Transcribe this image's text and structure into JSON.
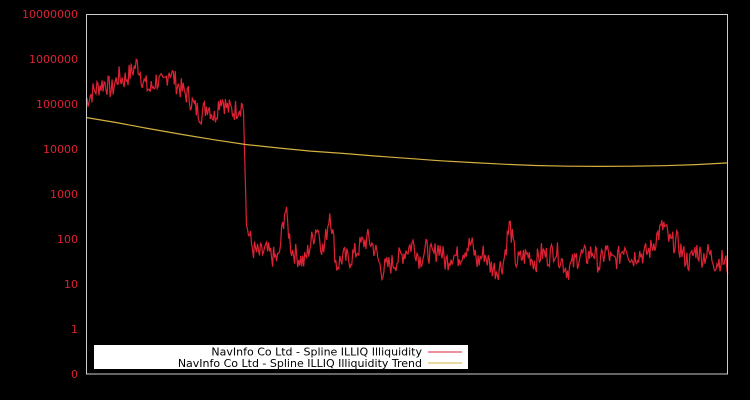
{
  "chart_data": {
    "type": "line",
    "title": "",
    "xlabel": "",
    "ylabel": "",
    "yscale": "log",
    "ylim": [
      0,
      10000000
    ],
    "y_tick_labels": [
      "10000000",
      "1000000",
      "100000",
      "10000",
      "1000",
      "100",
      "10",
      "1",
      "0"
    ],
    "grid": false,
    "legend_position": "lower-left",
    "colors": {
      "background": "#000000",
      "frame": "#cccccc",
      "tick_label": "#dd2233",
      "series_main": "#dd2233",
      "series_trend": "#d4b040",
      "legend_bg": "#ffffff"
    },
    "series": [
      {
        "name": "NavInfo Co Ltd - Spline ILLIQ Illiquidity",
        "color": "#dd2233",
        "x_fraction": [
          0.0,
          0.01,
          0.02,
          0.03,
          0.04,
          0.05,
          0.06,
          0.07,
          0.08,
          0.09,
          0.1,
          0.11,
          0.12,
          0.13,
          0.14,
          0.15,
          0.16,
          0.17,
          0.18,
          0.19,
          0.2,
          0.21,
          0.22,
          0.23,
          0.24,
          0.245,
          0.25,
          0.26,
          0.27,
          0.28,
          0.29,
          0.3,
          0.31,
          0.32,
          0.33,
          0.34,
          0.35,
          0.36,
          0.37,
          0.38,
          0.39,
          0.4,
          0.41,
          0.42,
          0.43,
          0.44,
          0.45,
          0.46,
          0.47,
          0.48,
          0.49,
          0.5,
          0.51,
          0.52,
          0.53,
          0.54,
          0.55,
          0.56,
          0.57,
          0.58,
          0.59,
          0.6,
          0.61,
          0.62,
          0.63,
          0.64,
          0.65,
          0.66,
          0.67,
          0.68,
          0.69,
          0.7,
          0.71,
          0.72,
          0.73,
          0.74,
          0.75,
          0.76,
          0.77,
          0.78,
          0.79,
          0.8,
          0.81,
          0.82,
          0.83,
          0.84,
          0.85,
          0.86,
          0.87,
          0.88,
          0.89,
          0.9,
          0.91,
          0.92,
          0.93,
          0.94,
          0.95,
          0.96,
          0.97,
          0.98,
          0.99,
          1.0
        ],
        "values": [
          120000,
          180000,
          250000,
          300000,
          200000,
          400000,
          350000,
          500000,
          800000,
          300000,
          200000,
          350000,
          250000,
          600000,
          300000,
          200000,
          150000,
          80000,
          60000,
          100000,
          50000,
          150000,
          80000,
          70000,
          90000,
          100000,
          200,
          60,
          45,
          55,
          40,
          35,
          500,
          60,
          40,
          30,
          80,
          200,
          50,
          450,
          25,
          40,
          35,
          50,
          80,
          100,
          60,
          20,
          25,
          30,
          40,
          60,
          80,
          35,
          60,
          40,
          70,
          30,
          45,
          40,
          60,
          80,
          30,
          50,
          25,
          20,
          30,
          220,
          30,
          40,
          45,
          30,
          50,
          40,
          60,
          35,
          20,
          30,
          45,
          40,
          55,
          25,
          60,
          30,
          40,
          80,
          35,
          50,
          45,
          60,
          120,
          200,
          80,
          90,
          45,
          30,
          60,
          40,
          50,
          30,
          35,
          25
        ]
      },
      {
        "name": "NavInfo Co Ltd - Spline ILLIQ Illiquidity Trend",
        "color": "#d4b040",
        "x_fraction": [
          0.0,
          0.05,
          0.1,
          0.15,
          0.2,
          0.25,
          0.3,
          0.35,
          0.4,
          0.45,
          0.5,
          0.55,
          0.6,
          0.65,
          0.7,
          0.75,
          0.8,
          0.85,
          0.9,
          0.95,
          1.0
        ],
        "values": [
          50000,
          38000,
          28000,
          21000,
          16000,
          12500,
          10500,
          9000,
          8000,
          7000,
          6200,
          5500,
          5000,
          4600,
          4300,
          4150,
          4100,
          4150,
          4250,
          4500,
          4900
        ]
      }
    ]
  },
  "legend": {
    "items": [
      {
        "label": "NavInfo Co Ltd - Spline ILLIQ Illiquidity",
        "color": "#dd2233"
      },
      {
        "label": "NavInfo Co Ltd - Spline ILLIQ Illiquidity Trend",
        "color": "#d4b040"
      }
    ]
  }
}
